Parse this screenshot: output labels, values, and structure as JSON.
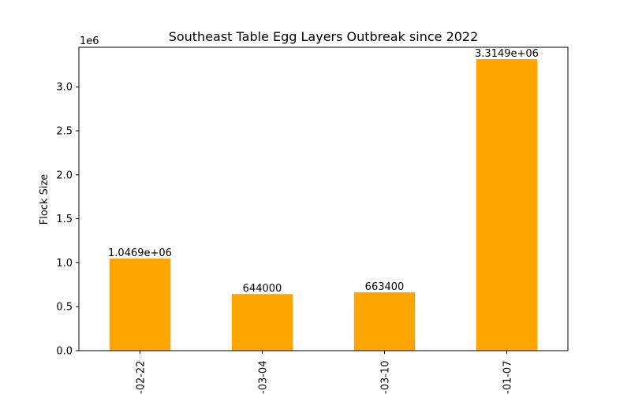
{
  "chart_data": {
    "type": "bar",
    "title": "Southeast Table Egg Layers Outbreak since 2022",
    "xlabel": "",
    "ylabel": "Flock Size",
    "categories": [
      "-02-22",
      "-03-04",
      "-03-10",
      "-01-07"
    ],
    "values": [
      1046900,
      644000,
      663400,
      3314900
    ],
    "data_labels": [
      "1.0469e+06",
      "644000",
      "663400",
      "3.3149e+06"
    ],
    "ylim": [
      0,
      3450000
    ],
    "y_ticks": [
      0,
      500000,
      1000000,
      1500000,
      2000000,
      2500000,
      3000000
    ],
    "y_tick_labels": [
      "0.0",
      "0.5",
      "1.0",
      "1.5",
      "2.0",
      "2.5",
      "3.0"
    ],
    "y_offset_label": "1e6",
    "bar_color": "#ffa500",
    "grid": false,
    "legend": "none"
  }
}
